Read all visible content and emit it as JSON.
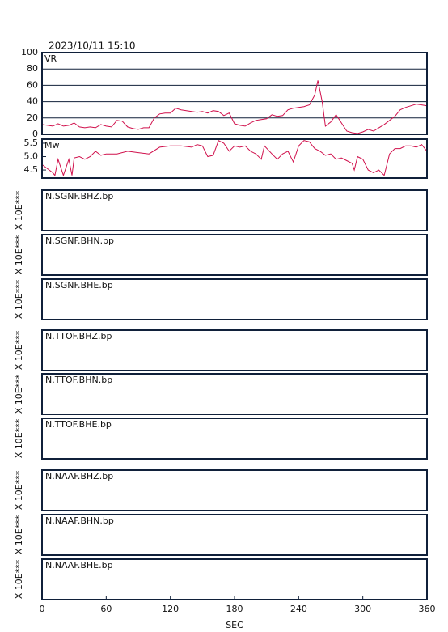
{
  "chart_data": [
    {
      "type": "line",
      "title": "2023/10/11  15:10",
      "label": "VR",
      "xlim": [
        0,
        360
      ],
      "ylim": [
        0,
        100
      ],
      "yticks": [
        0,
        20,
        40,
        60,
        80,
        100
      ],
      "grid": true,
      "x": [
        0,
        10,
        15,
        20,
        25,
        30,
        35,
        40,
        45,
        50,
        55,
        60,
        65,
        70,
        75,
        80,
        85,
        90,
        95,
        100,
        105,
        110,
        115,
        120,
        125,
        130,
        135,
        140,
        145,
        150,
        155,
        160,
        165,
        170,
        175,
        180,
        185,
        190,
        195,
        200,
        205,
        210,
        215,
        220,
        225,
        230,
        235,
        240,
        245,
        250,
        255,
        258,
        262,
        265,
        270,
        275,
        280,
        285,
        290,
        295,
        300,
        305,
        310,
        315,
        320,
        325,
        330,
        335,
        340,
        345,
        350,
        355,
        360
      ],
      "series": [
        {
          "name": "VR",
          "color": "#d0104c",
          "values": [
            12,
            10,
            13,
            10,
            11,
            14,
            9,
            8,
            9,
            8,
            12,
            10,
            9,
            17,
            16,
            9,
            7,
            6,
            8,
            8,
            20,
            25,
            26,
            26,
            32,
            30,
            29,
            28,
            27,
            28,
            26,
            29,
            28,
            23,
            26,
            13,
            11,
            10,
            14,
            17,
            18,
            19,
            24,
            22,
            23,
            30,
            32,
            33,
            34,
            36,
            48,
            66,
            40,
            10,
            15,
            24,
            14,
            4,
            2,
            1,
            3,
            6,
            4,
            8,
            12,
            17,
            22,
            30,
            33,
            35,
            37,
            36,
            35
          ]
        }
      ]
    },
    {
      "type": "line",
      "label": "Mw",
      "xlim": [
        0,
        360
      ],
      "ylim": [
        4.2,
        5.65
      ],
      "yticks": [
        4.5,
        {
          "value": 5,
          "label": "5.0"
        },
        5.5
      ],
      "grid": false,
      "x": [
        0,
        5,
        10,
        12,
        15,
        20,
        25,
        28,
        30,
        35,
        40,
        45,
        50,
        55,
        60,
        70,
        80,
        90,
        100,
        110,
        120,
        130,
        140,
        145,
        150,
        155,
        160,
        165,
        170,
        175,
        180,
        185,
        190,
        195,
        200,
        205,
        208,
        215,
        220,
        225,
        230,
        235,
        240,
        245,
        250,
        255,
        260,
        265,
        270,
        275,
        280,
        285,
        290,
        292,
        295,
        300,
        305,
        310,
        315,
        320,
        325,
        330,
        335,
        340,
        345,
        350,
        355,
        360
      ],
      "series": [
        {
          "name": "Mw",
          "color": "#d0104c",
          "values": [
            4.7,
            4.55,
            4.4,
            4.3,
            4.9,
            4.3,
            4.9,
            4.3,
            4.95,
            5.0,
            4.9,
            5.0,
            5.2,
            5.05,
            5.1,
            5.1,
            5.2,
            5.15,
            5.1,
            5.35,
            5.4,
            5.4,
            5.35,
            5.45,
            5.4,
            5.0,
            5.05,
            5.6,
            5.5,
            5.2,
            5.4,
            5.35,
            5.4,
            5.2,
            5.1,
            4.9,
            5.4,
            5.1,
            4.9,
            5.1,
            5.2,
            4.8,
            5.4,
            5.6,
            5.55,
            5.3,
            5.2,
            5.05,
            5.1,
            4.9,
            4.95,
            4.85,
            4.75,
            4.5,
            5.0,
            4.9,
            4.5,
            4.4,
            4.5,
            4.3,
            5.1,
            5.3,
            5.3,
            5.4,
            5.4,
            5.35,
            5.45,
            5.2
          ]
        }
      ]
    },
    {
      "type": "waveform",
      "xlim": [
        0,
        360
      ],
      "xticks": [
        0,
        60,
        120,
        180,
        240,
        300,
        360
      ],
      "xlabel": "SEC",
      "panels": [
        {
          "label": "N.SGNF.BHZ.bp",
          "scale": "X 10E***"
        },
        {
          "label": "N.SGNF.BHN.bp",
          "scale": "X 10E***"
        },
        {
          "label": "N.SGNF.BHE.bp",
          "scale": "X 10E***"
        },
        {
          "label": "N.TTOF.BHZ.bp",
          "scale": "X 10E***"
        },
        {
          "label": "N.TTOF.BHN.bp",
          "scale": "X 10E***"
        },
        {
          "label": "N.TTOF.BHE.bp",
          "scale": "X 10E***"
        },
        {
          "label": "N.NAAF.BHZ.bp",
          "scale": "X 10E***"
        },
        {
          "label": "N.NAAF.BHN.bp",
          "scale": "X 10E***"
        },
        {
          "label": "N.NAAF.BHE.bp",
          "scale": "X 10E***"
        }
      ]
    }
  ]
}
